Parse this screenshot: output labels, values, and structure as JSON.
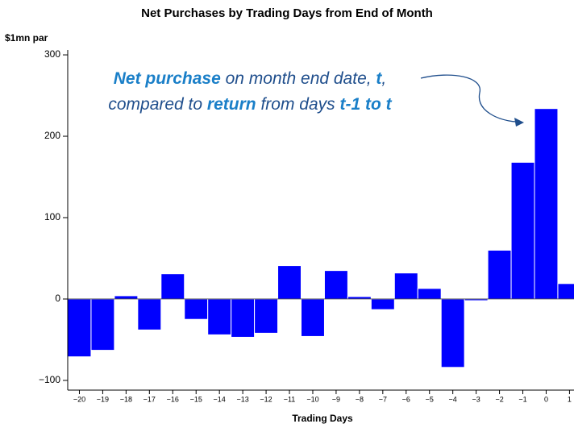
{
  "chart_data": {
    "type": "bar",
    "title": "Net Purchases by Trading Days from End of Month",
    "y_axis_label": "$1mn par",
    "x_axis_label": "Trading Days",
    "annotation": [
      [
        {
          "text": "Net purchase",
          "bold": true
        },
        {
          "text": " on month end date, ",
          "bold": false
        },
        {
          "text": "t",
          "bold": true
        },
        {
          "text": ",",
          "bold": false
        }
      ],
      [
        {
          "text": "compared to ",
          "bold": false
        },
        {
          "text": "return",
          "bold": true
        },
        {
          "text": " from days ",
          "bold": false
        },
        {
          "text": "t-1 to t",
          "bold": true
        }
      ]
    ],
    "categories": [
      "−20",
      "−19",
      "−18",
      "−17",
      "−16",
      "−15",
      "−14",
      "−13",
      "−12",
      "−11",
      "−10",
      "−9",
      "−8",
      "−7",
      "−6",
      "−5",
      "−4",
      "−3",
      "−2",
      "−1",
      "0",
      "1"
    ],
    "values": [
      -71,
      -63,
      4,
      -38,
      31,
      -25,
      -44,
      -47,
      -42,
      41,
      -46,
      35,
      3,
      -13,
      32,
      13,
      -84,
      -2,
      60,
      168,
      234,
      19
    ],
    "color": "#0000ff",
    "ylim": [
      -105,
      306
    ],
    "yticks": [
      {
        "value": -100,
        "label": "−100"
      },
      0,
      100,
      200,
      300
    ]
  }
}
